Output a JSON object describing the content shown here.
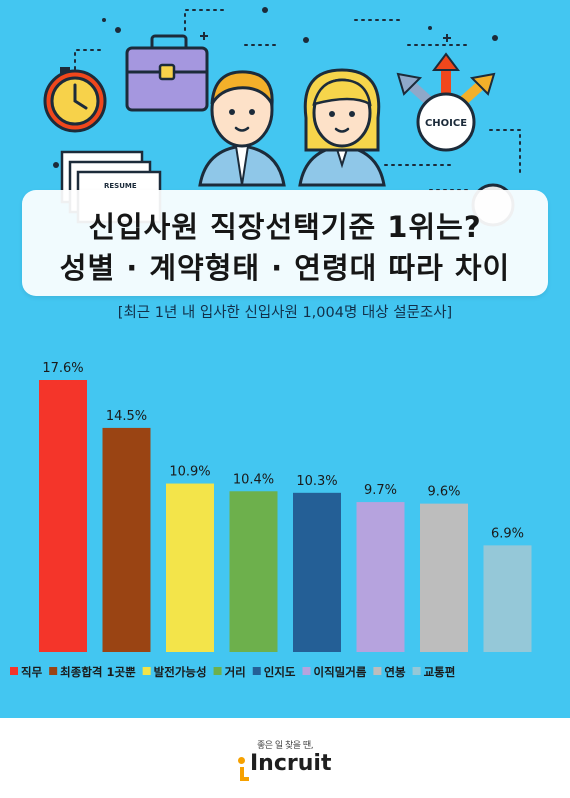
{
  "title_line1": "신입사원 직장선택기준 1위는?",
  "title_line2": "성별 · 계약형태 · 연령대 따라 차이",
  "subtitle": "[최근 1년 내 입사한 신입사원 1,004명 대상 설문조사]",
  "illustration": {
    "choice_label": "CHOICE",
    "resume_label": "RESUME"
  },
  "chart_data": {
    "type": "bar",
    "categories": [
      "직무",
      "최종합격 1곳뿐",
      "발전가능성",
      "거리",
      "인지도",
      "이직밀거름",
      "연봉",
      "교통편"
    ],
    "values": [
      17.6,
      14.5,
      10.9,
      10.4,
      10.3,
      9.7,
      9.6,
      6.9
    ],
    "value_labels": [
      "17.6%",
      "14.5%",
      "10.9%",
      "10.4%",
      "10.3%",
      "9.7%",
      "9.6%",
      "6.9%"
    ],
    "colors": [
      "#f4352a",
      "#9a4413",
      "#f3e44a",
      "#6db04c",
      "#245f96",
      "#b6a3de",
      "#bdbdbd",
      "#95c8d8"
    ],
    "ylim": [
      0,
      17.6
    ],
    "legend_position": "bottom"
  },
  "footer": {
    "tagline": "좋은 일 찾을 땐,",
    "logo_text": "Incruit"
  }
}
